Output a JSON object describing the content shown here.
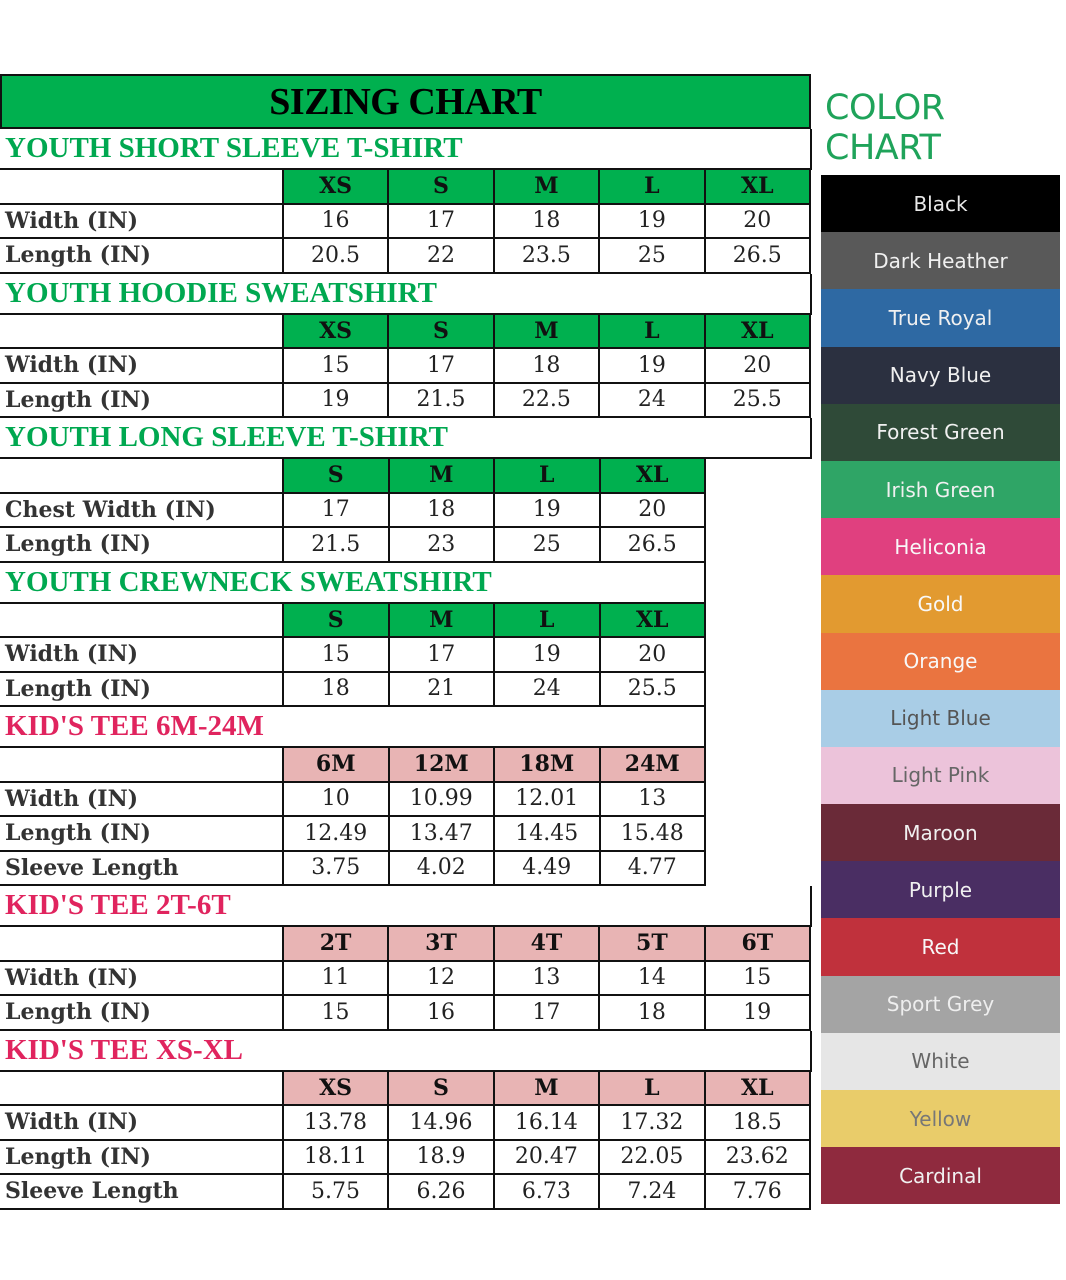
{
  "sizing_chart": {
    "title": "SIZING CHART",
    "colors": {
      "green": "#00b04f",
      "green_text": "#00a850",
      "pink_header": "#e8b4b4",
      "pink_text": "#e0245e"
    },
    "sections": [
      {
        "title": "YOUTH SHORT SLEEVE T-SHIRT",
        "theme": "green",
        "sizes": [
          "XS",
          "S",
          "M",
          "L",
          "XL"
        ],
        "rows": [
          {
            "label": "Width (IN)",
            "values": [
              "16",
              "17",
              "18",
              "19",
              "20"
            ]
          },
          {
            "label": "Length (IN)",
            "values": [
              "20.5",
              "22",
              "23.5",
              "25",
              "26.5"
            ]
          }
        ]
      },
      {
        "title": "YOUTH HOODIE SWEATSHIRT",
        "theme": "green",
        "sizes": [
          "XS",
          "S",
          "M",
          "L",
          "XL"
        ],
        "rows": [
          {
            "label": "Width (IN)",
            "values": [
              "15",
              "17",
              "18",
              "19",
              "20"
            ]
          },
          {
            "label": "Length (IN)",
            "values": [
              "19",
              "21.5",
              "22.5",
              "24",
              "25.5"
            ]
          }
        ]
      },
      {
        "title": "YOUTH LONG SLEEVE T-SHIRT",
        "theme": "green",
        "sizes": [
          "S",
          "M",
          "L",
          "XL"
        ],
        "rows": [
          {
            "label": "Chest Width (IN)",
            "values": [
              "17",
              "18",
              "19",
              "20"
            ]
          },
          {
            "label": "Length (IN)",
            "values": [
              "21.5",
              "23",
              "25",
              "26.5"
            ]
          }
        ]
      },
      {
        "title": "YOUTH CREWNECK SWEATSHIRT",
        "theme": "green",
        "sizes": [
          "S",
          "M",
          "L",
          "XL"
        ],
        "rows": [
          {
            "label": "Width (IN)",
            "values": [
              "15",
              "17",
              "19",
              "20"
            ]
          },
          {
            "label": "Length (IN)",
            "values": [
              "18",
              "21",
              "24",
              "25.5"
            ]
          }
        ]
      },
      {
        "title": "KID'S TEE 6M-24M",
        "theme": "pink",
        "sizes": [
          "6M",
          "12M",
          "18M",
          "24M"
        ],
        "rows": [
          {
            "label": "Width (IN)",
            "values": [
              "10",
              "10.99",
              "12.01",
              "13"
            ]
          },
          {
            "label": "Length (IN)",
            "values": [
              "12.49",
              "13.47",
              "14.45",
              "15.48"
            ]
          },
          {
            "label": "Sleeve Length",
            "values": [
              "3.75",
              "4.02",
              "4.49",
              "4.77"
            ]
          }
        ]
      },
      {
        "title": "KID'S TEE 2T-6T",
        "theme": "pink",
        "sizes": [
          "2T",
          "3T",
          "4T",
          "5T",
          "6T"
        ],
        "rows": [
          {
            "label": "Width (IN)",
            "values": [
              "11",
              "12",
              "13",
              "14",
              "15"
            ]
          },
          {
            "label": "Length (IN)",
            "values": [
              "15",
              "16",
              "17",
              "18",
              "19"
            ]
          }
        ]
      },
      {
        "title": "KID'S TEE XS-XL",
        "theme": "pink",
        "sizes": [
          "XS",
          "S",
          "M",
          "L",
          "XL"
        ],
        "rows": [
          {
            "label": "Width (IN)",
            "values": [
              "13.78",
              "14.96",
              "16.14",
              "17.32",
              "18.5"
            ]
          },
          {
            "label": "Length (IN)",
            "values": [
              "18.11",
              "18.9",
              "20.47",
              "22.05",
              "23.62"
            ]
          },
          {
            "label": "Sleeve Length",
            "values": [
              "5.75",
              "6.26",
              "6.73",
              "7.24",
              "7.76"
            ]
          }
        ]
      }
    ]
  },
  "color_chart": {
    "title": "COLOR CHART",
    "swatches": [
      {
        "name": "Black",
        "color": "#000000",
        "text": "#e8e8e8"
      },
      {
        "name": "Dark Heather",
        "color": "#595959",
        "text": "#f0f0f0"
      },
      {
        "name": "True Royal",
        "color": "#2e69a3",
        "text": "#f0f0f0"
      },
      {
        "name": "Navy Blue",
        "color": "#2b3040",
        "text": "#f0f0f0"
      },
      {
        "name": "Forest Green",
        "color": "#2f4a38",
        "text": "#f0f0f0"
      },
      {
        "name": "Irish Green",
        "color": "#2fa566",
        "text": "#f0f0f0"
      },
      {
        "name": "Heliconia",
        "color": "#e0407f",
        "text": "#f8f8f8"
      },
      {
        "name": "Gold",
        "color": "#e29a30",
        "text": "#f8f8f8"
      },
      {
        "name": "Orange",
        "color": "#ea7440",
        "text": "#f8f8f8"
      },
      {
        "name": "Light Blue",
        "color": "#a9cde6",
        "text": "#555555"
      },
      {
        "name": "Light Pink",
        "color": "#ecc3da",
        "text": "#666666"
      },
      {
        "name": "Maroon",
        "color": "#6a2a38",
        "text": "#f0f0f0"
      },
      {
        "name": "Purple",
        "color": "#4a2e63",
        "text": "#f0f0f0"
      },
      {
        "name": "Red",
        "color": "#c0313c",
        "text": "#f8f8f8"
      },
      {
        "name": "Sport Grey",
        "color": "#a4a4a4",
        "text": "#eeeeee"
      },
      {
        "name": "White",
        "color": "#e6e6e6",
        "text": "#666666"
      },
      {
        "name": "Yellow",
        "color": "#e9cc6a",
        "text": "#777777"
      },
      {
        "name": "Cardinal",
        "color": "#8f2a3e",
        "text": "#f0f0f0"
      }
    ]
  }
}
